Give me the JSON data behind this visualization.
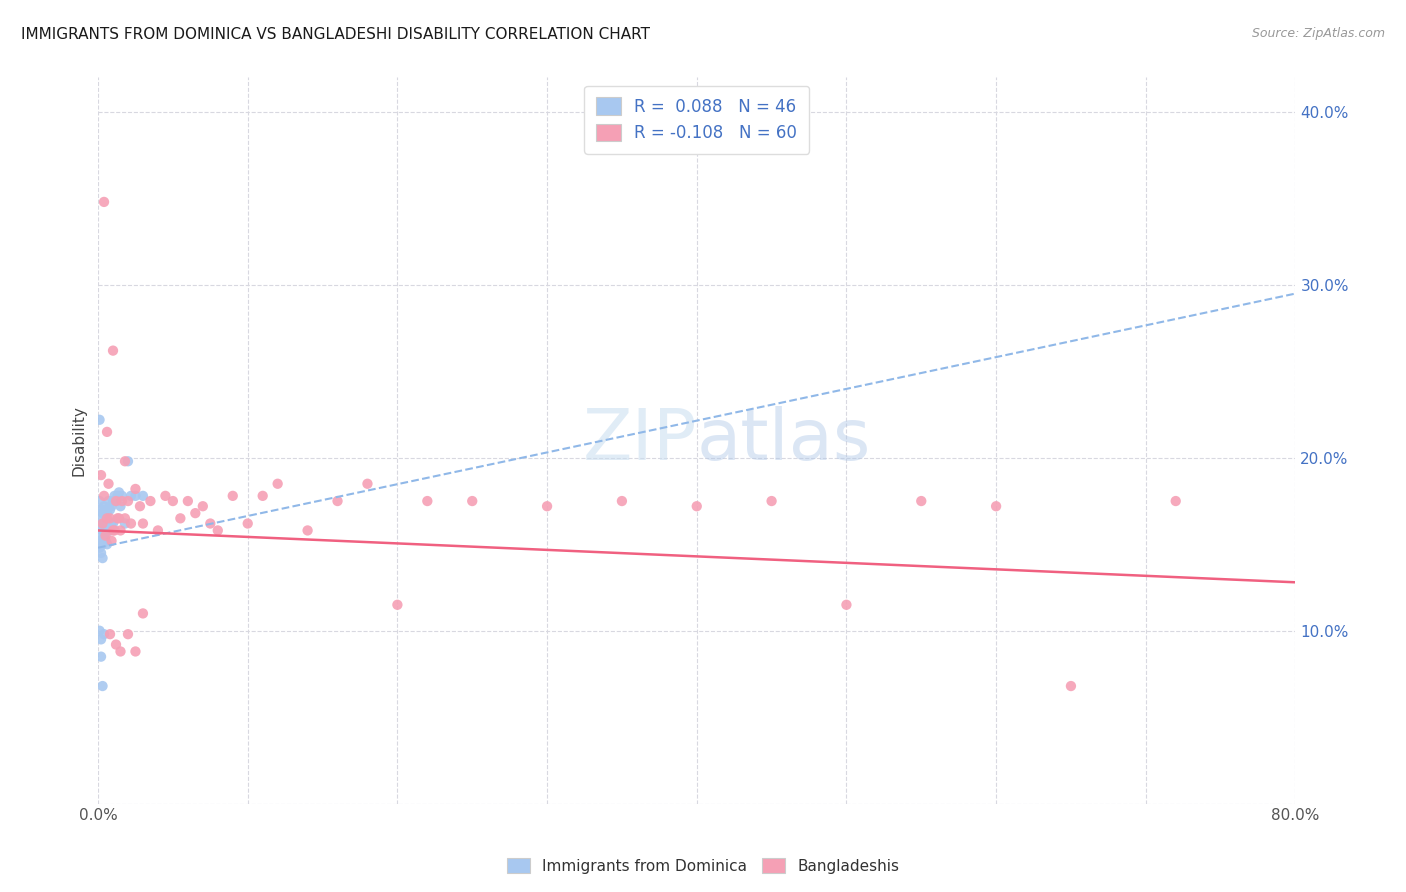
{
  "title": "IMMIGRANTS FROM DOMINICA VS BANGLADESHI DISABILITY CORRELATION CHART",
  "source": "Source: ZipAtlas.com",
  "ylabel": "Disability",
  "x_min": 0.0,
  "x_max": 0.8,
  "y_min": 0.0,
  "y_max": 0.42,
  "x_tick_positions": [
    0.0,
    0.1,
    0.2,
    0.3,
    0.4,
    0.5,
    0.6,
    0.7,
    0.8
  ],
  "x_tick_labels": [
    "0.0%",
    "",
    "",
    "",
    "",
    "",
    "",
    "",
    "80.0%"
  ],
  "y_tick_positions": [
    0.0,
    0.1,
    0.2,
    0.3,
    0.4
  ],
  "y_tick_labels_right": [
    "",
    "10.0%",
    "20.0%",
    "30.0%",
    "40.0%"
  ],
  "color_blue": "#a8c8f0",
  "color_pink": "#f5a0b5",
  "line_blue_color": "#90b8e8",
  "line_pink_color": "#f06080",
  "watermark_color": "#daeaf8",
  "blue_line_x0": 0.0,
  "blue_line_y0": 0.148,
  "blue_line_x1": 0.8,
  "blue_line_y1": 0.295,
  "pink_line_x0": 0.0,
  "pink_line_y0": 0.158,
  "pink_line_x1": 0.8,
  "pink_line_y1": 0.128,
  "blue_scatter_x": [
    0.001,
    0.001,
    0.001,
    0.001,
    0.002,
    0.002,
    0.002,
    0.002,
    0.003,
    0.003,
    0.003,
    0.003,
    0.004,
    0.004,
    0.004,
    0.005,
    0.005,
    0.005,
    0.006,
    0.006,
    0.006,
    0.007,
    0.007,
    0.008,
    0.008,
    0.009,
    0.009,
    0.01,
    0.01,
    0.011,
    0.012,
    0.013,
    0.014,
    0.015,
    0.016,
    0.018,
    0.02,
    0.022,
    0.025,
    0.03,
    0.001,
    0.002,
    0.001,
    0.003,
    0.002,
    0.004
  ],
  "blue_scatter_y": [
    0.175,
    0.165,
    0.155,
    0.148,
    0.17,
    0.16,
    0.152,
    0.145,
    0.168,
    0.158,
    0.15,
    0.142,
    0.172,
    0.162,
    0.154,
    0.17,
    0.16,
    0.152,
    0.168,
    0.158,
    0.15,
    0.175,
    0.16,
    0.17,
    0.158,
    0.172,
    0.162,
    0.175,
    0.162,
    0.178,
    0.175,
    0.178,
    0.18,
    0.172,
    0.178,
    0.162,
    0.198,
    0.178,
    0.178,
    0.178,
    0.222,
    0.085,
    0.1,
    0.068,
    0.095,
    0.098
  ],
  "pink_scatter_x": [
    0.002,
    0.003,
    0.004,
    0.005,
    0.006,
    0.007,
    0.008,
    0.009,
    0.01,
    0.011,
    0.012,
    0.013,
    0.014,
    0.015,
    0.016,
    0.018,
    0.02,
    0.022,
    0.025,
    0.028,
    0.03,
    0.035,
    0.04,
    0.045,
    0.05,
    0.055,
    0.06,
    0.065,
    0.07,
    0.075,
    0.08,
    0.09,
    0.1,
    0.11,
    0.12,
    0.14,
    0.16,
    0.18,
    0.2,
    0.22,
    0.25,
    0.3,
    0.35,
    0.4,
    0.45,
    0.5,
    0.55,
    0.6,
    0.65,
    0.72,
    0.004,
    0.006,
    0.008,
    0.01,
    0.012,
    0.015,
    0.018,
    0.02,
    0.025,
    0.03
  ],
  "pink_scatter_y": [
    0.19,
    0.162,
    0.178,
    0.155,
    0.165,
    0.185,
    0.165,
    0.152,
    0.158,
    0.158,
    0.175,
    0.165,
    0.165,
    0.158,
    0.175,
    0.165,
    0.175,
    0.162,
    0.182,
    0.172,
    0.162,
    0.175,
    0.158,
    0.178,
    0.175,
    0.165,
    0.175,
    0.168,
    0.172,
    0.162,
    0.158,
    0.178,
    0.162,
    0.178,
    0.185,
    0.158,
    0.175,
    0.185,
    0.115,
    0.175,
    0.175,
    0.172,
    0.175,
    0.172,
    0.175,
    0.115,
    0.175,
    0.172,
    0.068,
    0.175,
    0.348,
    0.215,
    0.098,
    0.262,
    0.092,
    0.088,
    0.198,
    0.098,
    0.088,
    0.11
  ]
}
